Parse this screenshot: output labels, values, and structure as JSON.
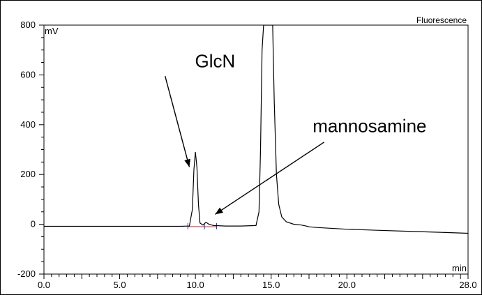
{
  "chart_data": {
    "type": "line",
    "title": "Fluorescence",
    "xlabel": "min",
    "ylabel": "mV",
    "xlim": [
      0,
      28
    ],
    "ylim": [
      -200,
      800
    ],
    "x_ticks": [
      0,
      5,
      10,
      15,
      20,
      28
    ],
    "x_tick_labels": [
      "0.0",
      "5.0",
      "10.0",
      "15.0",
      "20.0",
      "28.0"
    ],
    "y_ticks": [
      -200,
      0,
      200,
      400,
      600,
      800
    ],
    "y_tick_labels": [
      "-200",
      "0",
      "200",
      "400",
      "600",
      "800"
    ],
    "grid": false,
    "series": [
      {
        "color": "#000000",
        "x": [
          0,
          2,
          4,
          6,
          8,
          9,
          9.6,
          9.8,
          9.9,
          10.0,
          10.1,
          10.2,
          10.3,
          10.5,
          10.7,
          10.9,
          11.2,
          12,
          13,
          14.0,
          14.2,
          14.3,
          14.4,
          14.5,
          14.8,
          15.0,
          15.1,
          15.2,
          15.35,
          15.5,
          15.7,
          16.0,
          16.5,
          17.0,
          17.3,
          17.5,
          18,
          20,
          22,
          24,
          26,
          28
        ],
        "y": [
          -8,
          -8,
          -8,
          -8,
          -8,
          -8,
          -7,
          60,
          220,
          290,
          230,
          80,
          5,
          -3,
          8,
          0,
          -5,
          -7,
          -7,
          -5,
          50,
          300,
          700,
          800,
          800,
          800,
          800,
          500,
          200,
          80,
          30,
          10,
          0,
          -3,
          -7,
          -10,
          -13,
          -20,
          -24,
          -28,
          -32,
          -36
        ]
      }
    ],
    "annotations": [
      {
        "text": "GlcN",
        "x": 11.3,
        "y": 630,
        "arrow_from": [
          8.0,
          595
        ],
        "arrow_to": [
          9.6,
          230
        ]
      },
      {
        "text": "mannosamine",
        "x": 21.5,
        "y": 370,
        "arrow_from": [
          18.5,
          330
        ],
        "arrow_to": [
          11.3,
          40
        ]
      }
    ]
  }
}
